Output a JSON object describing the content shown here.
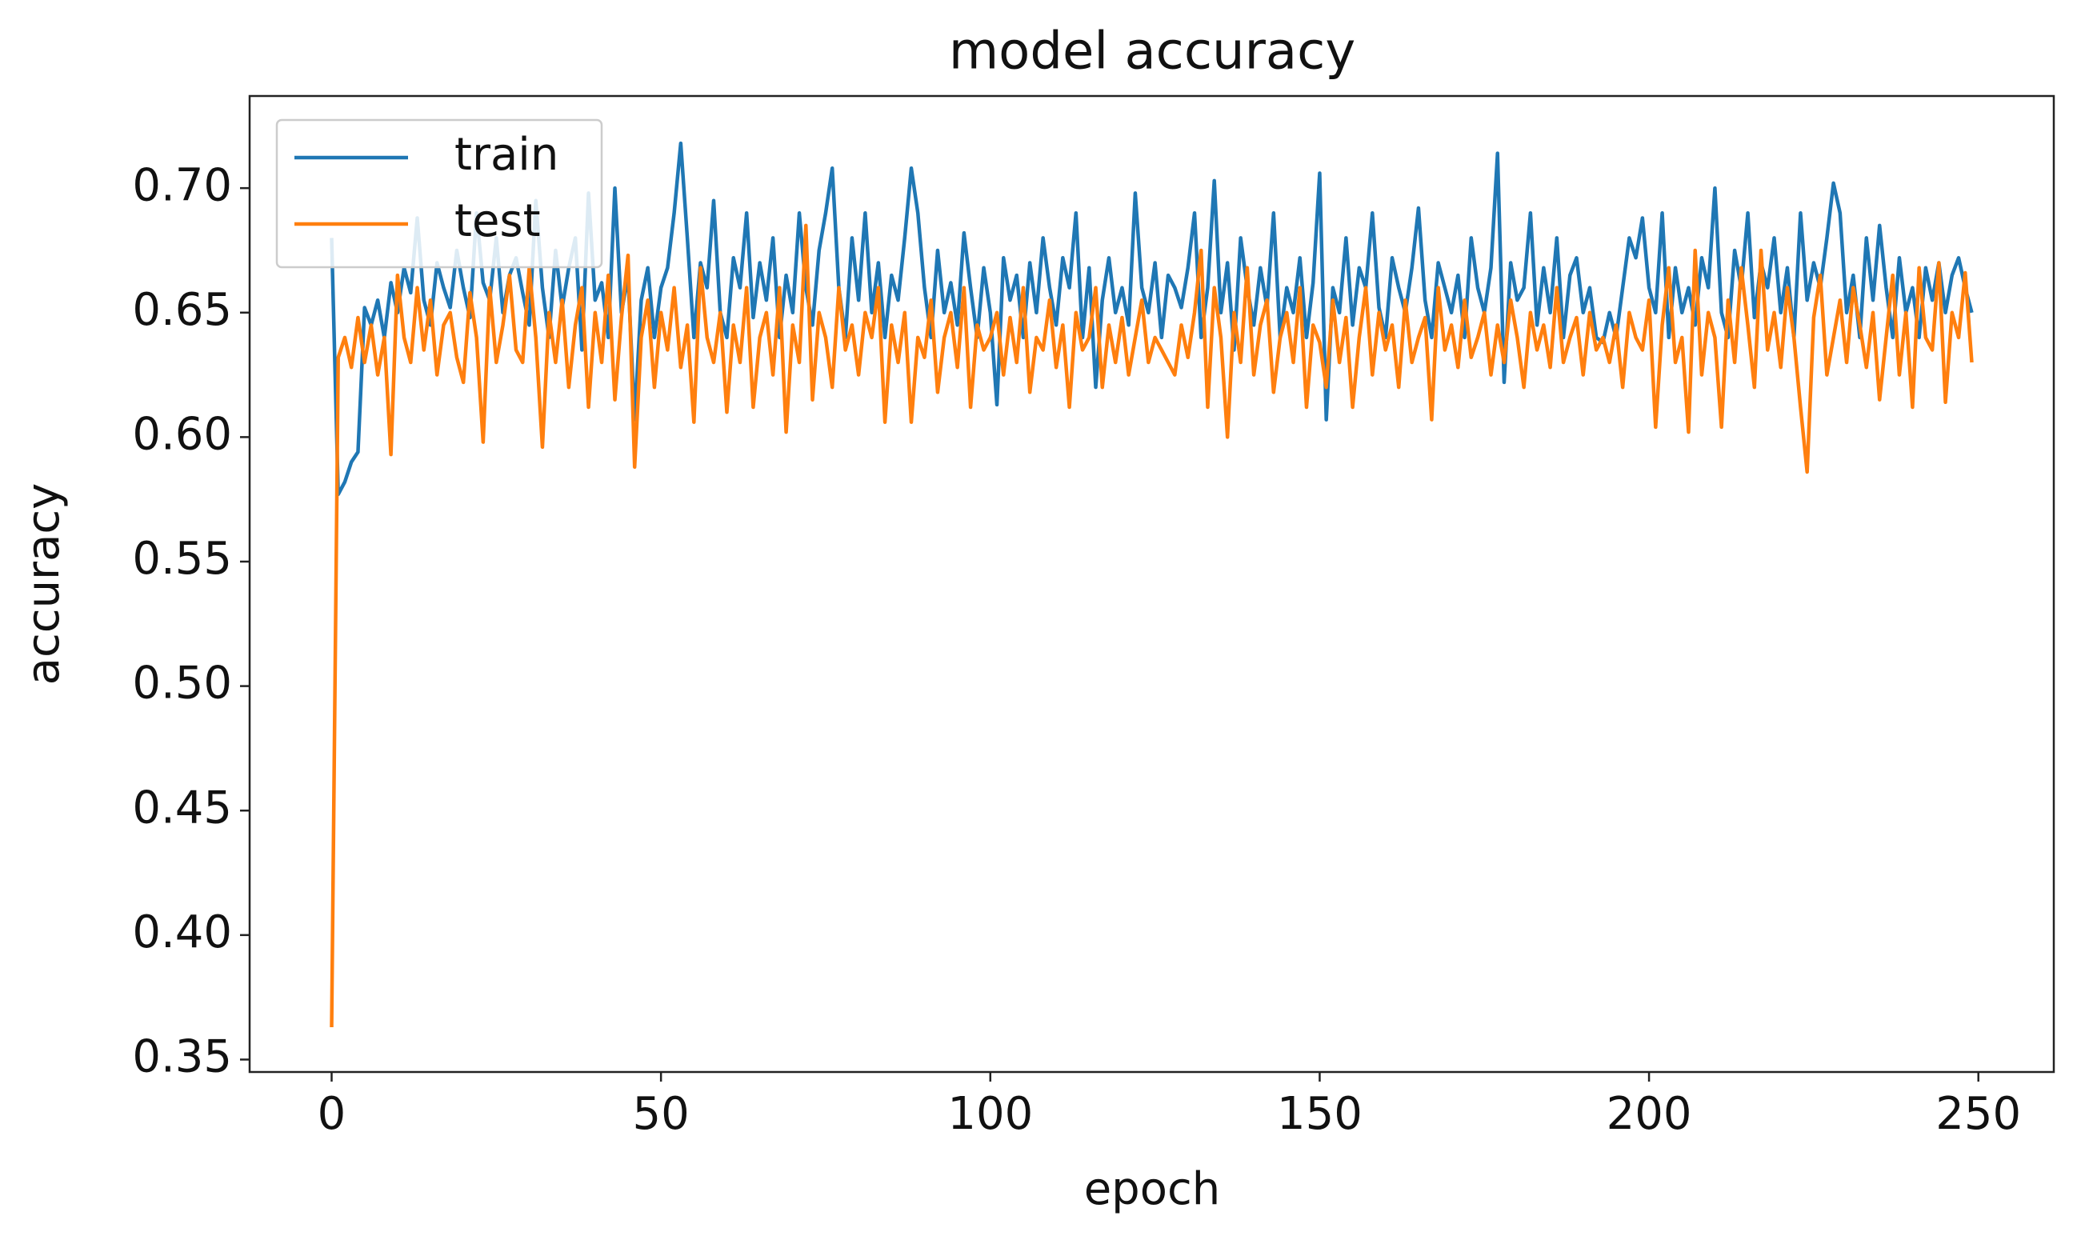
{
  "chart_data": {
    "type": "line",
    "title": "model accuracy",
    "xlabel": "epoch",
    "ylabel": "accuracy",
    "x": [
      0,
      1,
      2,
      3,
      4,
      5,
      6,
      7,
      8,
      9,
      10,
      11,
      12,
      13,
      14,
      15,
      16,
      17,
      18,
      19,
      20,
      21,
      22,
      23,
      24,
      25,
      26,
      27,
      28,
      29,
      30,
      31,
      32,
      33,
      34,
      35,
      36,
      37,
      38,
      39,
      40,
      41,
      42,
      43,
      44,
      45,
      46,
      47,
      48,
      49,
      50,
      51,
      52,
      53,
      54,
      55,
      56,
      57,
      58,
      59,
      60,
      61,
      62,
      63,
      64,
      65,
      66,
      67,
      68,
      69,
      70,
      71,
      72,
      73,
      74,
      75,
      76,
      77,
      78,
      79,
      80,
      81,
      82,
      83,
      84,
      85,
      86,
      87,
      88,
      89,
      90,
      91,
      92,
      93,
      94,
      95,
      96,
      97,
      98,
      99,
      100,
      101,
      102,
      103,
      104,
      105,
      106,
      107,
      108,
      109,
      110,
      111,
      112,
      113,
      114,
      115,
      116,
      117,
      118,
      119,
      120,
      121,
      122,
      123,
      124,
      125,
      126,
      127,
      128,
      129,
      130,
      131,
      132,
      133,
      134,
      135,
      136,
      137,
      138,
      139,
      140,
      141,
      142,
      143,
      144,
      145,
      146,
      147,
      148,
      149,
      150,
      151,
      152,
      153,
      154,
      155,
      156,
      157,
      158,
      159,
      160,
      161,
      162,
      163,
      164,
      165,
      166,
      167,
      168,
      169,
      170,
      171,
      172,
      173,
      174,
      175,
      176,
      177,
      178,
      179,
      180,
      181,
      182,
      183,
      184,
      185,
      186,
      187,
      188,
      189,
      190,
      191,
      192,
      193,
      194,
      195,
      196,
      197,
      198,
      199,
      200,
      201,
      202,
      203,
      204,
      205,
      206,
      207,
      208,
      209,
      210,
      211,
      212,
      213,
      214,
      215,
      216,
      217,
      218,
      219,
      220,
      221,
      222,
      223,
      224,
      225,
      226,
      227,
      228,
      229,
      230,
      231,
      232,
      233,
      234,
      235,
      236,
      237,
      238,
      239,
      240,
      241,
      242,
      243,
      244,
      245,
      246,
      247,
      248,
      249
    ],
    "series": [
      {
        "name": "train",
        "color": "#1f77b4",
        "values": [
          0.68,
          0.577,
          0.582,
          0.59,
          0.594,
          0.652,
          0.645,
          0.655,
          0.64,
          0.662,
          0.65,
          0.668,
          0.658,
          0.688,
          0.655,
          0.645,
          0.67,
          0.66,
          0.652,
          0.675,
          0.66,
          0.648,
          0.69,
          0.662,
          0.655,
          0.68,
          0.65,
          0.665,
          0.672,
          0.658,
          0.645,
          0.695,
          0.66,
          0.64,
          0.675,
          0.652,
          0.668,
          0.68,
          0.635,
          0.698,
          0.655,
          0.662,
          0.64,
          0.7,
          0.65,
          0.665,
          0.607,
          0.655,
          0.668,
          0.64,
          0.66,
          0.668,
          0.69,
          0.718,
          0.68,
          0.64,
          0.67,
          0.66,
          0.695,
          0.65,
          0.64,
          0.672,
          0.66,
          0.69,
          0.648,
          0.67,
          0.655,
          0.68,
          0.64,
          0.665,
          0.65,
          0.69,
          0.66,
          0.645,
          0.675,
          0.69,
          0.708,
          0.66,
          0.64,
          0.68,
          0.655,
          0.69,
          0.65,
          0.67,
          0.64,
          0.665,
          0.655,
          0.68,
          0.708,
          0.69,
          0.66,
          0.64,
          0.675,
          0.65,
          0.662,
          0.645,
          0.682,
          0.66,
          0.64,
          0.668,
          0.65,
          0.613,
          0.672,
          0.655,
          0.665,
          0.64,
          0.67,
          0.65,
          0.68,
          0.66,
          0.645,
          0.672,
          0.66,
          0.69,
          0.64,
          0.668,
          0.62,
          0.655,
          0.672,
          0.65,
          0.66,
          0.645,
          0.698,
          0.66,
          0.65,
          0.67,
          0.64,
          0.665,
          0.66,
          0.652,
          0.668,
          0.69,
          0.64,
          0.66,
          0.703,
          0.65,
          0.67,
          0.635,
          0.68,
          0.66,
          0.645,
          0.668,
          0.652,
          0.69,
          0.64,
          0.66,
          0.65,
          0.672,
          0.64,
          0.662,
          0.706,
          0.607,
          0.66,
          0.65,
          0.68,
          0.645,
          0.668,
          0.66,
          0.69,
          0.652,
          0.64,
          0.672,
          0.66,
          0.65,
          0.668,
          0.692,
          0.655,
          0.64,
          0.67,
          0.66,
          0.65,
          0.665,
          0.64,
          0.68,
          0.66,
          0.65,
          0.668,
          0.714,
          0.622,
          0.67,
          0.655,
          0.66,
          0.69,
          0.645,
          0.668,
          0.65,
          0.68,
          0.64,
          0.665,
          0.672,
          0.65,
          0.66,
          0.64,
          0.638,
          0.65,
          0.64,
          0.66,
          0.68,
          0.672,
          0.688,
          0.66,
          0.65,
          0.69,
          0.64,
          0.668,
          0.65,
          0.66,
          0.645,
          0.672,
          0.66,
          0.7,
          0.65,
          0.64,
          0.675,
          0.66,
          0.69,
          0.648,
          0.67,
          0.66,
          0.68,
          0.65,
          0.668,
          0.64,
          0.69,
          0.655,
          0.67,
          0.66,
          0.68,
          0.702,
          0.69,
          0.65,
          0.665,
          0.64,
          0.68,
          0.655,
          0.685,
          0.66,
          0.64,
          0.672,
          0.65,
          0.66,
          0.64,
          0.668,
          0.655,
          0.67,
          0.65,
          0.665,
          0.672,
          0.66,
          0.65
        ]
      },
      {
        "name": "test",
        "color": "#ff7f0e",
        "values": [
          0.363,
          0.632,
          0.64,
          0.628,
          0.648,
          0.63,
          0.645,
          0.625,
          0.64,
          0.593,
          0.665,
          0.64,
          0.63,
          0.66,
          0.635,
          0.655,
          0.625,
          0.645,
          0.65,
          0.632,
          0.622,
          0.658,
          0.64,
          0.598,
          0.66,
          0.63,
          0.645,
          0.665,
          0.635,
          0.63,
          0.668,
          0.64,
          0.596,
          0.65,
          0.63,
          0.655,
          0.62,
          0.645,
          0.66,
          0.612,
          0.65,
          0.63,
          0.665,
          0.615,
          0.648,
          0.673,
          0.588,
          0.64,
          0.655,
          0.62,
          0.65,
          0.635,
          0.66,
          0.628,
          0.645,
          0.606,
          0.668,
          0.64,
          0.63,
          0.65,
          0.61,
          0.645,
          0.63,
          0.66,
          0.612,
          0.64,
          0.65,
          0.625,
          0.66,
          0.602,
          0.645,
          0.63,
          0.685,
          0.615,
          0.65,
          0.64,
          0.62,
          0.66,
          0.635,
          0.645,
          0.625,
          0.65,
          0.64,
          0.66,
          0.606,
          0.645,
          0.63,
          0.65,
          0.606,
          0.64,
          0.632,
          0.655,
          0.618,
          0.64,
          0.65,
          0.628,
          0.66,
          0.612,
          0.645,
          0.635,
          0.64,
          0.65,
          0.625,
          0.648,
          0.63,
          0.66,
          0.618,
          0.64,
          0.635,
          0.655,
          0.628,
          0.645,
          0.612,
          0.65,
          0.635,
          0.64,
          0.66,
          0.62,
          0.645,
          0.63,
          0.648,
          0.625,
          0.64,
          0.655,
          0.63,
          0.64,
          0.635,
          0.63,
          0.625,
          0.645,
          0.632,
          0.65,
          0.675,
          0.612,
          0.66,
          0.64,
          0.6,
          0.65,
          0.63,
          0.668,
          0.625,
          0.645,
          0.655,
          0.618,
          0.64,
          0.65,
          0.63,
          0.66,
          0.612,
          0.645,
          0.638,
          0.62,
          0.655,
          0.63,
          0.648,
          0.612,
          0.64,
          0.66,
          0.625,
          0.65,
          0.635,
          0.645,
          0.62,
          0.655,
          0.63,
          0.64,
          0.648,
          0.607,
          0.66,
          0.635,
          0.645,
          0.628,
          0.655,
          0.632,
          0.64,
          0.65,
          0.625,
          0.645,
          0.63,
          0.655,
          0.64,
          0.62,
          0.65,
          0.635,
          0.645,
          0.628,
          0.66,
          0.63,
          0.64,
          0.648,
          0.625,
          0.65,
          0.635,
          0.64,
          0.63,
          0.645,
          0.62,
          0.65,
          0.64,
          0.635,
          0.655,
          0.604,
          0.645,
          0.668,
          0.63,
          0.64,
          0.602,
          0.675,
          0.625,
          0.65,
          0.64,
          0.604,
          0.655,
          0.63,
          0.668,
          0.645,
          0.62,
          0.675,
          0.635,
          0.65,
          0.628,
          0.66,
          0.64,
          0.612,
          0.586,
          0.648,
          0.665,
          0.625,
          0.64,
          0.655,
          0.63,
          0.66,
          0.645,
          0.628,
          0.65,
          0.615,
          0.64,
          0.665,
          0.625,
          0.65,
          0.612,
          0.668,
          0.64,
          0.635,
          0.67,
          0.614,
          0.65,
          0.64,
          0.666,
          0.63
        ]
      }
    ],
    "xlim": [
      -12.45,
      261.45
    ],
    "xticks": [
      0,
      50,
      100,
      150,
      200,
      250
    ],
    "ylim": [
      0.345,
      0.737
    ],
    "yticks": [
      0.35,
      {
        "value": 0.4,
        "label": "0.40"
      },
      0.45,
      {
        "value": 0.5,
        "label": "0.50"
      },
      0.55,
      {
        "value": 0.6,
        "label": "0.60"
      },
      0.65,
      {
        "value": 0.7,
        "label": "0.70"
      }
    ],
    "grid": false,
    "legend": "upper left"
  }
}
